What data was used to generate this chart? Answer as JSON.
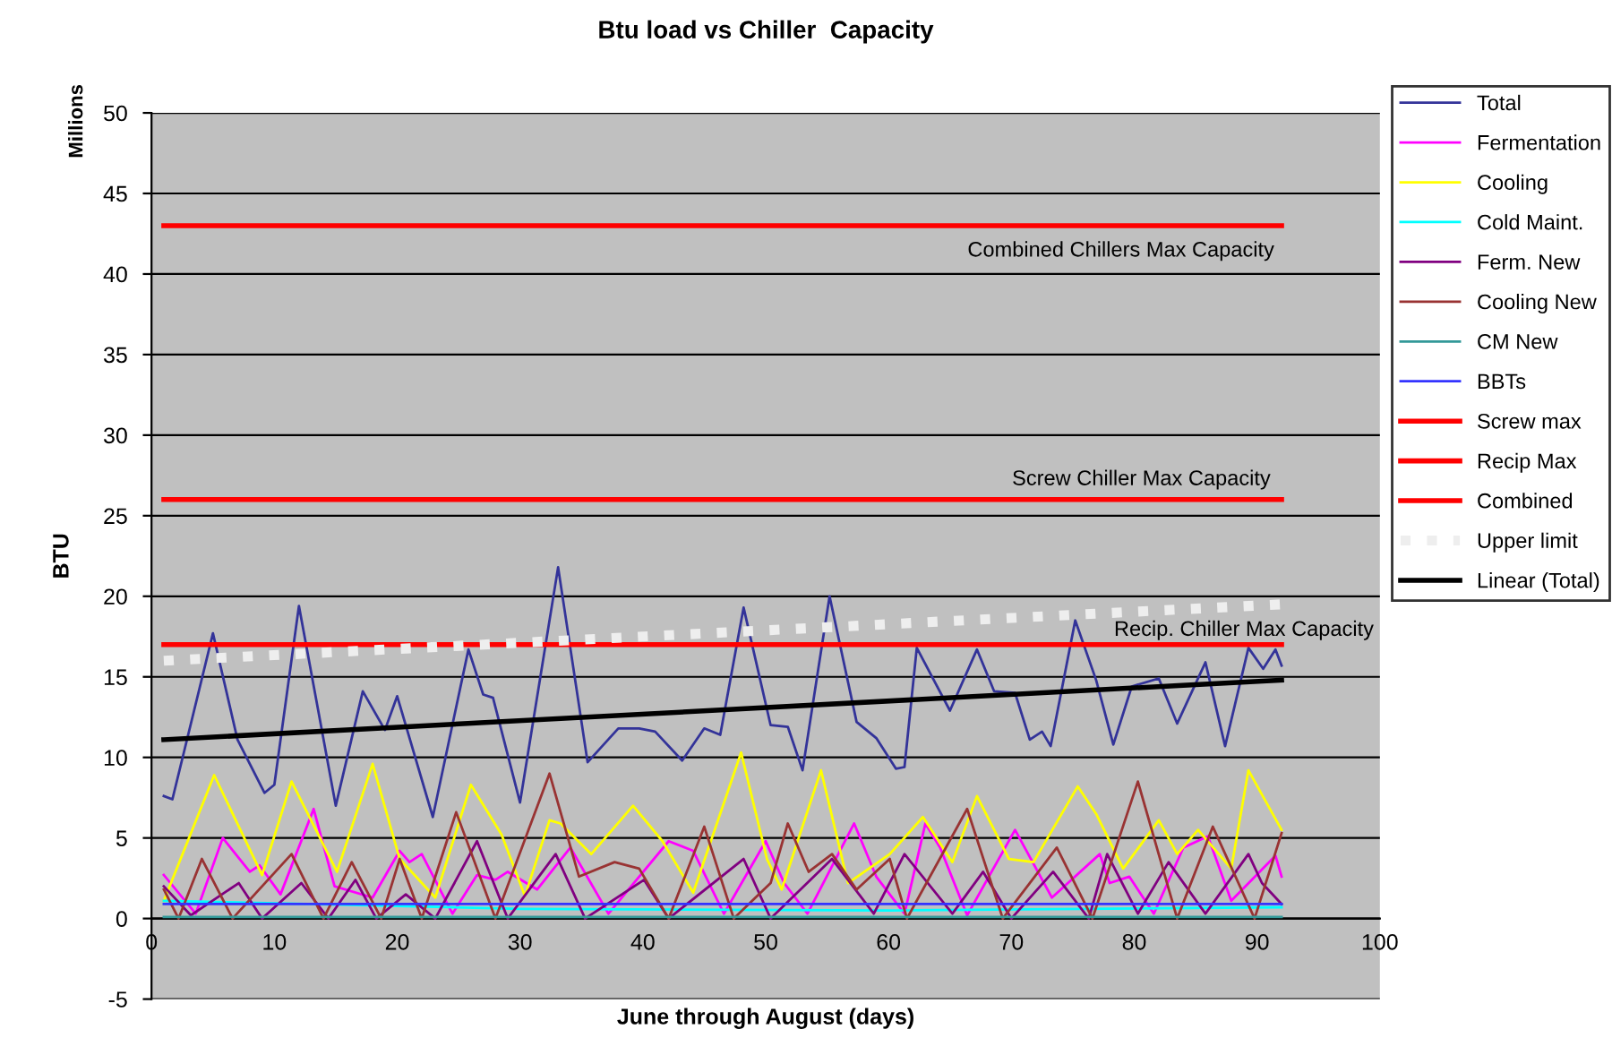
{
  "chart_data": {
    "type": "line",
    "title": "Btu load vs Chiller  Capacity",
    "xlabel": "June through August (days)",
    "ylabel": "BTU",
    "xlim": [
      0,
      100
    ],
    "xticks": [
      0,
      10,
      20,
      30,
      40,
      50,
      60,
      70,
      80,
      90,
      100
    ],
    "ylim": [
      -5,
      50
    ],
    "yticks": [
      -5,
      0,
      5,
      10,
      15,
      20,
      25,
      30,
      35,
      40,
      45,
      50
    ],
    "grid": "y",
    "legend": "right",
    "marker": "none",
    "annotations": [
      "Millions",
      "Combined Chillers Max Capacity",
      "Screw Chiller Max Capacity",
      "Recip. Chiller Max Capacity"
    ],
    "series": [
      {
        "name": "Total",
        "color": "#333399",
        "x": [
          1,
          1.7,
          5,
          7,
          9.2,
          10,
          12,
          15,
          17.2,
          19,
          20,
          22.9,
          25.8,
          27,
          27.8,
          30,
          33.1,
          35.5,
          38,
          39.7,
          41,
          43.2,
          45,
          46.3,
          48.2,
          50.4,
          51.8,
          53,
          55.2,
          57.4,
          59,
          60.6,
          61.3,
          62.3,
          65,
          67.2,
          68.6,
          70.3,
          71.5,
          72.5,
          73.2,
          75.2,
          76.9,
          78.3,
          79.8,
          82,
          83.5,
          85.8,
          87.4,
          89.3,
          90.5,
          91.5,
          92
        ],
        "values": [
          7.6,
          7.4,
          17.7,
          11.1,
          7.8,
          8.3,
          19.4,
          7.0,
          14.1,
          11.7,
          13.8,
          6.3,
          16.7,
          13.9,
          13.7,
          7.2,
          21.8,
          9.7,
          11.8,
          11.8,
          11.6,
          9.8,
          11.8,
          11.4,
          19.3,
          12.0,
          11.9,
          9.2,
          20.0,
          12.2,
          11.2,
          9.3,
          9.4,
          16.8,
          12.9,
          16.7,
          14.1,
          14.0,
          11.1,
          11.6,
          10.7,
          18.5,
          14.8,
          10.8,
          14.4,
          14.9,
          12.1,
          15.9,
          10.7,
          16.8,
          15.5,
          16.7,
          15.7
        ]
      },
      {
        "name": "Fermentation",
        "color": "#ff00ff",
        "x": [
          1,
          3.6,
          5.8,
          8,
          8.8,
          10.5,
          13.2,
          14.9,
          18,
          20.2,
          21,
          22,
          24.5,
          26.5,
          28,
          29,
          31.4,
          34.1,
          37.2,
          42.1,
          44.1,
          46.6,
          50,
          51.5,
          53.4,
          57.2,
          59,
          61.3,
          63,
          64.2,
          66.4,
          70.3,
          73.3,
          77.2,
          78,
          79.6,
          81.6,
          84,
          86,
          87.9,
          91.5,
          92
        ],
        "values": [
          2.7,
          0.3,
          5.0,
          2.9,
          3.3,
          1.5,
          6.8,
          2.0,
          1.3,
          4.2,
          3.5,
          4.0,
          0.3,
          2.7,
          2.4,
          2.9,
          1.8,
          4.4,
          0.3,
          4.8,
          4.2,
          0.3,
          4.8,
          2.2,
          0.3,
          5.9,
          2.6,
          0.3,
          5.9,
          4.4,
          0.2,
          5.5,
          1.3,
          4.0,
          2.2,
          2.6,
          0.3,
          4.4,
          5.1,
          1.1,
          3.9,
          2.6
        ]
      },
      {
        "name": "Cooling",
        "color": "#ffff00",
        "x": [
          1,
          5.1,
          9,
          11.4,
          15.1,
          18,
          20.2,
          23.1,
          26,
          28.5,
          30.4,
          32.4,
          33.3,
          35.8,
          39.2,
          41.6,
          44.1,
          48,
          50.1,
          51.3,
          54.5,
          56.7,
          60.1,
          62.8,
          65.2,
          67.2,
          69.8,
          71.8,
          75.4,
          76.9,
          79.1,
          82,
          83.5,
          85.2,
          87.9,
          89.3,
          92
        ],
        "values": [
          1.1,
          8.9,
          2.7,
          8.5,
          2.9,
          9.6,
          3.7,
          1.3,
          8.3,
          5.2,
          1.4,
          6.1,
          5.9,
          4.0,
          7.0,
          4.8,
          1.6,
          10.3,
          3.7,
          1.8,
          9.2,
          2.2,
          4.0,
          6.3,
          3.5,
          7.6,
          3.7,
          3.5,
          8.2,
          6.5,
          3.1,
          6.1,
          4.0,
          5.5,
          3.1,
          9.2,
          5.5
        ]
      },
      {
        "name": "Cold Maint.",
        "color": "#00ffff",
        "x": [
          1,
          30,
          60,
          92
        ],
        "values": [
          1.1,
          0.6,
          0.5,
          0.7
        ]
      },
      {
        "name": "Ferm. New",
        "color": "#800080",
        "x": [
          1,
          3.2,
          7.1,
          9,
          12.2,
          14.4,
          16.6,
          18.3,
          20.7,
          23.1,
          26.5,
          29,
          32.9,
          35.3,
          40.1,
          42.1,
          48.2,
          50.4,
          55.4,
          58.8,
          61.3,
          65.2,
          67.7,
          70,
          73.4,
          76.3,
          77.8,
          80.3,
          82.8,
          85.8,
          89.3,
          90.4,
          92
        ],
        "values": [
          2.0,
          0.2,
          2.2,
          0,
          2.2,
          0,
          2.4,
          0,
          1.5,
          0,
          4.8,
          0,
          4.0,
          0,
          2.4,
          0,
          3.7,
          0,
          3.7,
          0.3,
          4.0,
          0.3,
          2.9,
          0,
          2.9,
          0,
          4.0,
          0.3,
          3.5,
          0.3,
          4.0,
          2.2,
          0.9
        ]
      },
      {
        "name": "Cooling New",
        "color": "#993333",
        "x": [
          1,
          2.2,
          4.1,
          6.6,
          11.4,
          14,
          16.3,
          18.7,
          20.2,
          22,
          24.8,
          28,
          32.4,
          34.8,
          37.7,
          39.7,
          42.1,
          45,
          47.4,
          50.4,
          51.8,
          53.5,
          55.4,
          57.4,
          60.1,
          61.5,
          66.4,
          69.3,
          73.7,
          76.6,
          80.3,
          83.5,
          86.4,
          89.8,
          92
        ],
        "values": [
          1.8,
          0,
          3.7,
          0,
          4.0,
          0,
          3.5,
          0,
          3.7,
          0,
          6.6,
          0,
          9.0,
          2.6,
          3.5,
          3.1,
          0,
          5.7,
          0,
          2.2,
          5.9,
          2.9,
          4.0,
          1.8,
          3.7,
          0,
          6.8,
          0,
          4.4,
          0,
          8.5,
          0,
          5.7,
          0,
          5.3
        ]
      },
      {
        "name": "CM New",
        "color": "#339999",
        "x": [
          1,
          92
        ],
        "values": [
          0.1,
          0.1
        ]
      },
      {
        "name": "BBTs",
        "color": "#3333ff",
        "x": [
          1,
          92
        ],
        "values": [
          0.9,
          0.9
        ]
      },
      {
        "name": "Screw max",
        "color": "#ff0000",
        "x": [
          1,
          92
        ],
        "values": [
          26,
          26
        ]
      },
      {
        "name": "Recip Max",
        "color": "#ff0000",
        "x": [
          1,
          92
        ],
        "values": [
          17,
          17
        ]
      },
      {
        "name": "Combined",
        "color": "#ff0000",
        "x": [
          1,
          92
        ],
        "values": [
          43,
          43
        ]
      },
      {
        "name": "Upper limit",
        "color": "#eeeeee",
        "line_style": "dotted",
        "x": [
          1,
          92
        ],
        "values": [
          16,
          19.5
        ]
      },
      {
        "name": "Linear (Total)",
        "color": "#000000",
        "x": [
          1,
          92
        ],
        "values": [
          11.1,
          14.8
        ]
      }
    ]
  }
}
